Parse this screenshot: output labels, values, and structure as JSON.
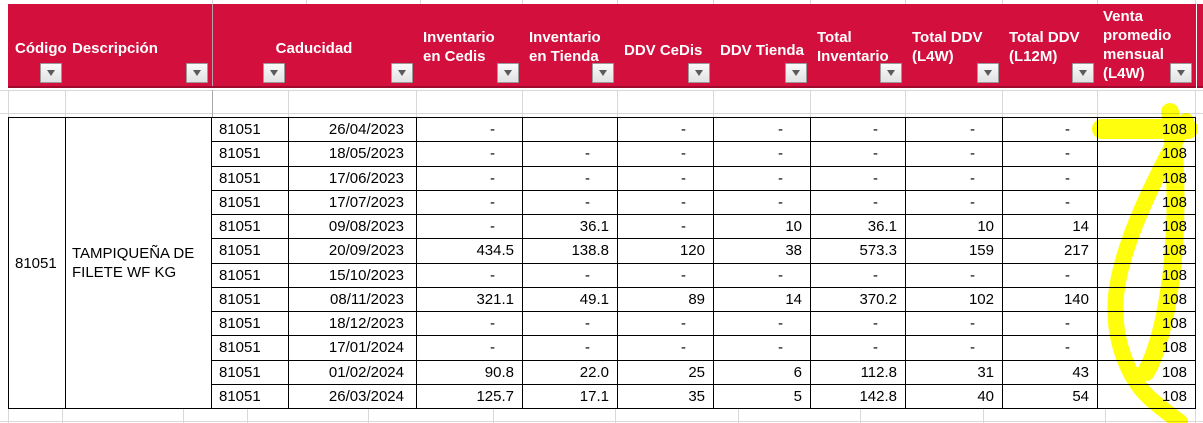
{
  "header": {
    "codigo": "Código",
    "descripcion": "Descripción",
    "caducidad": "Caducidad",
    "inv_cedis": "Inventario\nen Cedis",
    "inv_tienda": "Inventario\nen Tienda",
    "ddv_cedis": "DDV CeDis",
    "ddv_tienda": "DDV Tienda",
    "total_inv": "Total\nInventario",
    "total_ddv_l4w": "Total DDV\n(L4W)",
    "total_ddv_l12m": "Total DDV\n(L12M)",
    "venta_promedio": "Venta\npromedio\nmensual\n(L4W)",
    "filter_icon": "chevron-down"
  },
  "product": {
    "codigo": "81051",
    "descripcion": "TAMPIQUEÑA DE FILETE  WF KG"
  },
  "rows": [
    [
      "81051",
      "26/04/2023",
      "-",
      "",
      "-",
      "-",
      "-",
      "-",
      "-",
      "108"
    ],
    [
      "81051",
      "18/05/2023",
      "-",
      "-",
      "-",
      "-",
      "-",
      "-",
      "-",
      "108"
    ],
    [
      "81051",
      "17/06/2023",
      "-",
      "-",
      "-",
      "-",
      "-",
      "-",
      "-",
      "108"
    ],
    [
      "81051",
      "17/07/2023",
      "-",
      "-",
      "-",
      "-",
      "-",
      "-",
      "-",
      "108"
    ],
    [
      "81051",
      "09/08/2023",
      "-",
      "36.1",
      "-",
      "10",
      "36.1",
      "10",
      "14",
      "108"
    ],
    [
      "81051",
      "20/09/2023",
      "434.5",
      "138.8",
      "120",
      "38",
      "573.3",
      "159",
      "217",
      "108"
    ],
    [
      "81051",
      "15/10/2023",
      "-",
      "-",
      "-",
      "-",
      "-",
      "-",
      "-",
      "108"
    ],
    [
      "81051",
      "08/11/2023",
      "321.1",
      "49.1",
      "89",
      "14",
      "370.2",
      "102",
      "140",
      "108"
    ],
    [
      "81051",
      "18/12/2023",
      "-",
      "-",
      "-",
      "-",
      "-",
      "-",
      "-",
      "108"
    ],
    [
      "81051",
      "17/01/2024",
      "-",
      "-",
      "-",
      "-",
      "-",
      "-",
      "-",
      "108"
    ],
    [
      "81051",
      "01/02/2024",
      "90.8",
      "22.0",
      "25",
      "6",
      "112.8",
      "31",
      "43",
      "108"
    ],
    [
      "81051",
      "26/03/2024",
      "125.7",
      "17.1",
      "35",
      "5",
      "142.8",
      "40",
      "54",
      "108"
    ]
  ],
  "colors": {
    "header_bg": "#d20f3d",
    "header_bg_dark": "#9e0b2f",
    "highlight": "#ffff00"
  }
}
